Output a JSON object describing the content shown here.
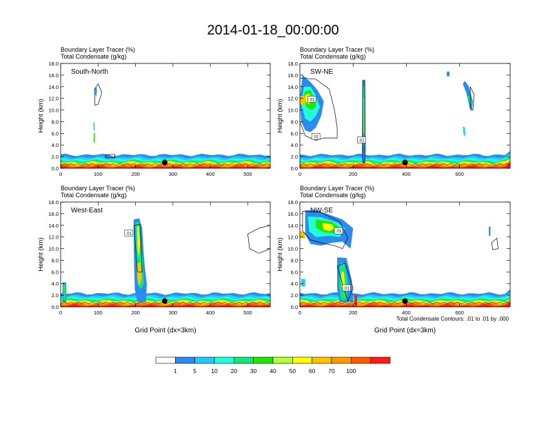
{
  "figure": {
    "title": "2014-01-18_00:00:00",
    "footnote": "Total Condensate Contours: .01 to .01 by .000"
  },
  "colorbar": {
    "labels": [
      "1",
      "5",
      "10",
      "20",
      "30",
      "40",
      "50",
      "60",
      "70",
      "100"
    ],
    "colors": [
      "#ffffff",
      "#2a8cf0",
      "#22c8ff",
      "#20ffd8",
      "#16e67a",
      "#20e600",
      "#b4ff3a",
      "#ffff00",
      "#ffc400",
      "#ff9a00",
      "#ff5a00",
      "#ff1a1a"
    ]
  },
  "chart_data": [
    {
      "type": "heatmap",
      "panel_label": "South-North",
      "subtitle1": "Boundary Layer Tracer   (%)",
      "subtitle2": "Total Condensate   (g/kg)",
      "ylabel": "Height (km)",
      "xlabel": "",
      "xlim": [
        0,
        560
      ],
      "ylim": [
        0,
        18
      ],
      "xticks": [
        "0",
        "100",
        "200",
        "300",
        "400",
        "500"
      ],
      "yticks": [
        "0.0",
        "2.0",
        "4.0",
        "6.0",
        "8.0",
        "10.0",
        "12.0",
        "14.0",
        "16.0",
        "18.0"
      ],
      "contour_labels": [],
      "marker": {
        "x": 278,
        "y": 1.0
      }
    },
    {
      "type": "heatmap",
      "panel_label": "SW-NE",
      "subtitle1": "Boundary Layer Tracer   (%)",
      "subtitle2": "Total Condensate   (g/kg)",
      "ylabel": "Height (km)",
      "xlabel": "",
      "xlim": [
        0,
        790
      ],
      "ylim": [
        0,
        18
      ],
      "xticks": [
        "0",
        "200",
        "400",
        "600"
      ],
      "yticks": [
        "0.0",
        "2.0",
        "4.0",
        "6.0",
        "8.0",
        "10.0",
        "12.0",
        "14.0",
        "16.0",
        "18.0"
      ],
      "contour_labels": [
        ".01",
        ".01",
        ".01"
      ],
      "marker": {
        "x": 395,
        "y": 1.0
      }
    },
    {
      "type": "heatmap",
      "panel_label": "West-East",
      "subtitle1": "Boundary Layer Tracer   (%)",
      "subtitle2": "Total Condensate   (g/kg)",
      "ylabel": "Height (km)",
      "xlabel": "Grid Point (dx=3km)",
      "xlim": [
        0,
        560
      ],
      "ylim": [
        0,
        18
      ],
      "xticks": [
        "0",
        "100",
        "200",
        "300",
        "400",
        "500"
      ],
      "yticks": [
        "0.0",
        "2.0",
        "4.0",
        "6.0",
        "8.0",
        "10.0",
        "12.0",
        "14.0",
        "16.0",
        "18.0"
      ],
      "contour_labels": [
        ".01"
      ],
      "marker": {
        "x": 278,
        "y": 1.0
      }
    },
    {
      "type": "heatmap",
      "panel_label": "NW-SE",
      "subtitle1": "Boundary Layer Tracer   (%)",
      "subtitle2": "Total Condensate   (g/kg)",
      "ylabel": "Height (km)",
      "xlabel": "Grid Point (dx=3km)",
      "xlim": [
        0,
        790
      ],
      "ylim": [
        0,
        18
      ],
      "xticks": [
        "0",
        "200",
        "400",
        "600"
      ],
      "yticks": [
        "0.0",
        "2.0",
        "4.0",
        "6.0",
        "8.0",
        "10.0",
        "12.0",
        "14.0",
        "16.0",
        "18.0"
      ],
      "contour_labels": [
        ".01",
        ".01"
      ],
      "marker": {
        "x": 395,
        "y": 1.0
      }
    }
  ]
}
